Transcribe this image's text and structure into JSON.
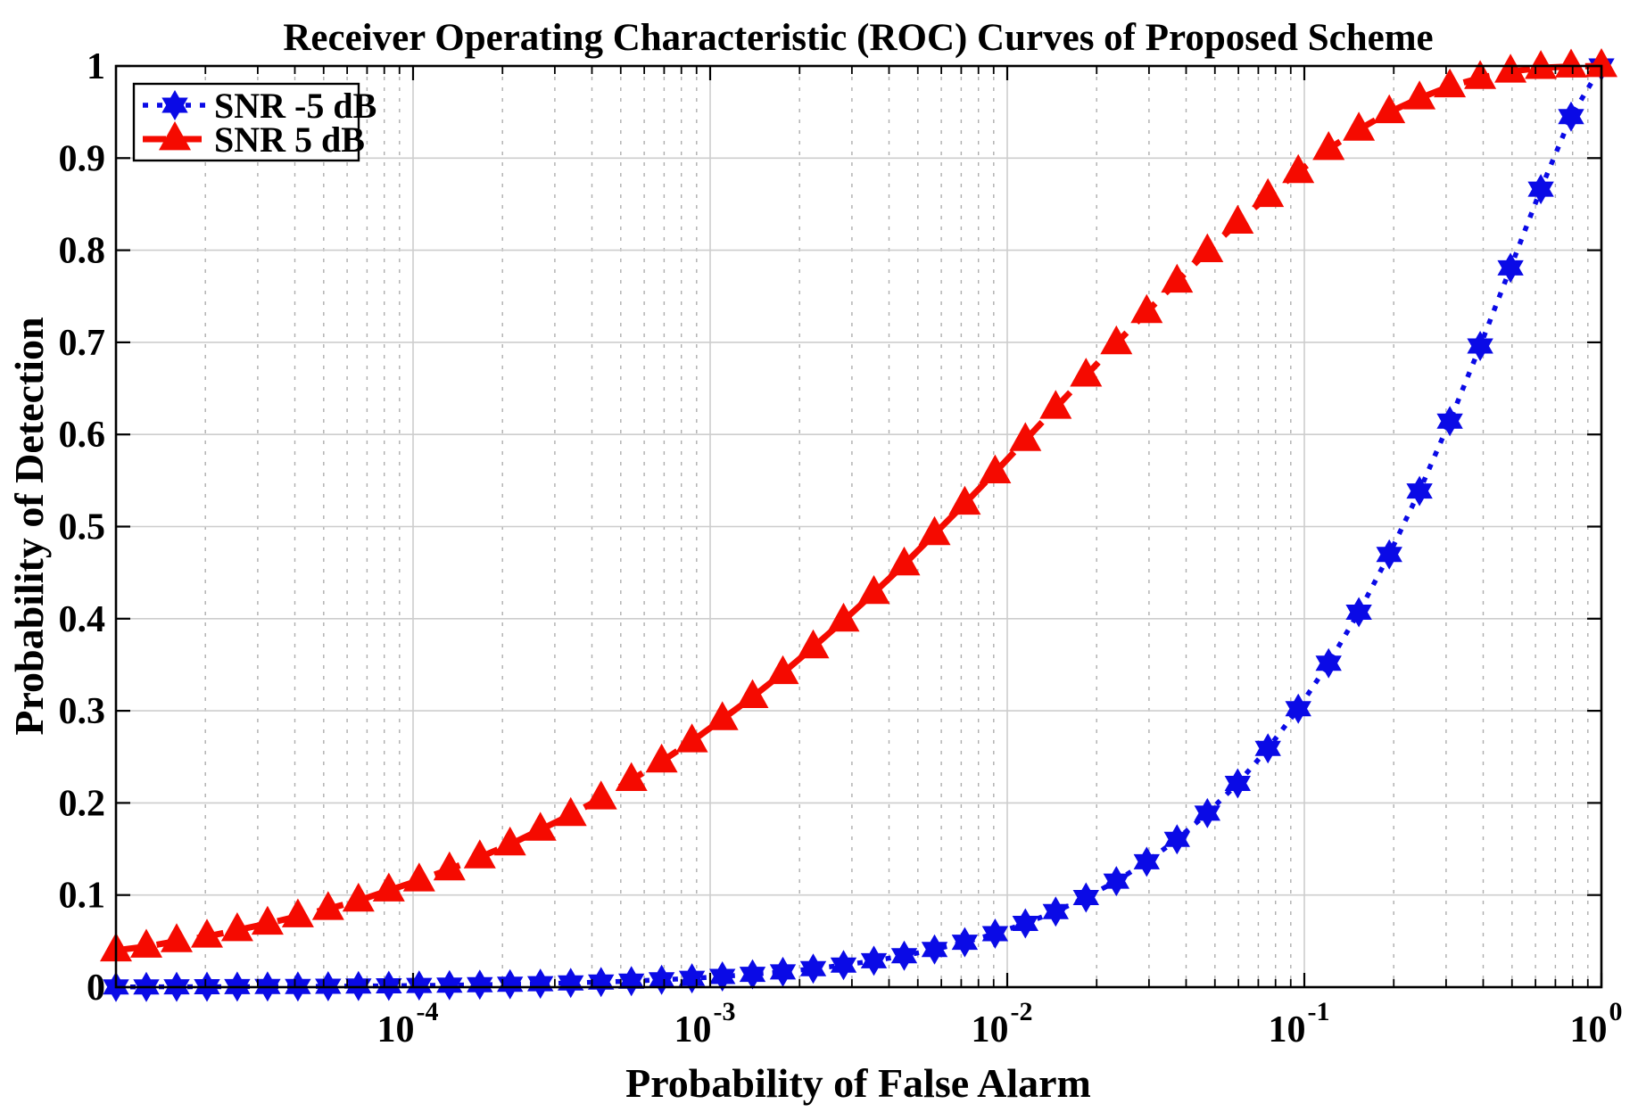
{
  "figure": {
    "title": "Receiver Operating Characteristic (ROC) Curves of Proposed Scheme",
    "x_label": "Probability of False Alarm",
    "y_label": "Probability of Detection",
    "background_color": "#ffffff",
    "axis_color": "#000000",
    "grid_major_color": "#cdcdcd",
    "grid_minor_color": "#aeaeae"
  },
  "legend": {
    "position": "upper-left",
    "entries": [
      {
        "label": "SNR -5 dB",
        "color": "#0a0ae6",
        "line_style": "dotted",
        "marker": "hexagram"
      },
      {
        "label": "SNR 5 dB",
        "color": "#f50a00",
        "line_style": "dashed",
        "marker": "triangle-up"
      }
    ]
  },
  "chart_data": {
    "type": "line",
    "x_scale": "log",
    "y_scale": "linear",
    "xlim": [
      1e-05,
      1
    ],
    "ylim": [
      0,
      1
    ],
    "grid": "on",
    "legend_position": "upper-left",
    "xlabel": "Probability of False Alarm",
    "ylabel": "Probability of Detection",
    "title": "Receiver Operating Characteristic (ROC) Curves of Proposed Scheme",
    "x_ticks": [
      {
        "value": 0.0001,
        "base": "10",
        "exp": "-4"
      },
      {
        "value": 0.001,
        "base": "10",
        "exp": "-3"
      },
      {
        "value": 0.01,
        "base": "10",
        "exp": "-2"
      },
      {
        "value": 0.1,
        "base": "10",
        "exp": "-1"
      },
      {
        "value": 1,
        "base": "10",
        "exp": "0"
      }
    ],
    "y_ticks": [
      {
        "value": 0,
        "label": "0"
      },
      {
        "value": 0.1,
        "label": "0.1"
      },
      {
        "value": 0.2,
        "label": "0.2"
      },
      {
        "value": 0.3,
        "label": "0.3"
      },
      {
        "value": 0.4,
        "label": "0.4"
      },
      {
        "value": 0.5,
        "label": "0.5"
      },
      {
        "value": 0.6,
        "label": "0.6"
      },
      {
        "value": 0.7,
        "label": "0.7"
      },
      {
        "value": 0.8,
        "label": "0.8"
      },
      {
        "value": 0.9,
        "label": "0.9"
      },
      {
        "value": 1,
        "label": "1"
      }
    ],
    "x": [
      1e-05,
      1.265e-05,
      1.6e-05,
      2.024e-05,
      2.56e-05,
      3.237e-05,
      4.095e-05,
      5.179e-05,
      6.551e-05,
      8.286e-05,
      0.0001048,
      0.0001326,
      0.0001677,
      0.0002121,
      0.0002683,
      0.0003393,
      0.0004292,
      0.0005429,
      0.0006866,
      0.0008685,
      0.001099,
      0.001389,
      0.001757,
      0.002223,
      0.002812,
      0.003556,
      0.004498,
      0.00569,
      0.007197,
      0.009103,
      0.01151,
      0.01456,
      0.01842,
      0.0233,
      0.02947,
      0.03728,
      0.04715,
      0.05964,
      0.07543,
      0.09541,
      0.1207,
      0.1526,
      0.1931,
      0.2442,
      0.3089,
      0.3907,
      0.4942,
      0.6251,
      0.7906,
      1.0
    ],
    "series": [
      {
        "name": "SNR -5 dB",
        "color": "#0a0ae6",
        "line_style": "dotted",
        "marker": "hexagram",
        "y": [
          0.0003,
          0.0003,
          0.0004,
          0.0005,
          0.0006,
          0.0007,
          0.0008,
          0.001,
          0.0012,
          0.0015,
          0.0018,
          0.0021,
          0.0026,
          0.0031,
          0.0038,
          0.0046,
          0.0055,
          0.0066,
          0.008,
          0.0096,
          0.0116,
          0.0139,
          0.0166,
          0.02,
          0.0239,
          0.0287,
          0.0342,
          0.0409,
          0.0488,
          0.0581,
          0.0692,
          0.0821,
          0.0973,
          0.1151,
          0.1361,
          0.1604,
          0.1889,
          0.2212,
          0.2591,
          0.3022,
          0.3516,
          0.4071,
          0.4697,
          0.5386,
          0.6145,
          0.696,
          0.7808,
          0.8663,
          0.9451,
          1.0
        ]
      },
      {
        "name": "SNR 5 dB",
        "color": "#f50a00",
        "line_style": "dashed",
        "marker": "triangle-up",
        "y": [
          0.04,
          0.044,
          0.05,
          0.055,
          0.062,
          0.069,
          0.077,
          0.085,
          0.094,
          0.105,
          0.116,
          0.128,
          0.141,
          0.155,
          0.171,
          0.187,
          0.205,
          0.225,
          0.245,
          0.267,
          0.291,
          0.315,
          0.341,
          0.369,
          0.398,
          0.428,
          0.459,
          0.492,
          0.525,
          0.559,
          0.594,
          0.629,
          0.664,
          0.699,
          0.733,
          0.766,
          0.799,
          0.83,
          0.859,
          0.885,
          0.91,
          0.931,
          0.95,
          0.965,
          0.978,
          0.987,
          0.994,
          0.998,
          0.9995,
          1.0
        ]
      }
    ]
  }
}
